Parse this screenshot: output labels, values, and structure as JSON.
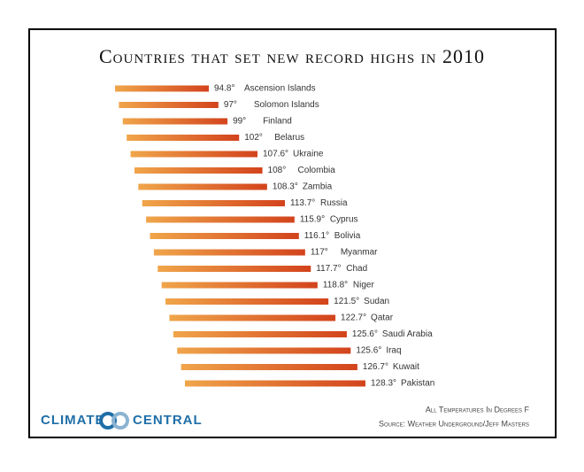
{
  "chart_data": {
    "type": "bar",
    "orientation": "horizontal",
    "title": "Countries that set new record highs in 2010",
    "categories": [
      "Ascension Islands",
      "Solomon Islands",
      "Finland",
      "Belarus",
      "Ukraine",
      "Colombia",
      "Zambia",
      "Russia",
      "Cyprus",
      "Bolivia",
      "Myanmar",
      "Chad",
      "Niger",
      "Sudan",
      "Qatar",
      "Saudi Arabia",
      "Iraq",
      "Kuwait",
      "Pakistan"
    ],
    "values": [
      94.8,
      97,
      99,
      102,
      107.6,
      108,
      108.3,
      113.7,
      115.9,
      116.1,
      117,
      117.7,
      118.8,
      121.5,
      122.7,
      125.6,
      125.6,
      126.7,
      128.3
    ],
    "value_labels": [
      "94.8°",
      "97°",
      "99°",
      "102°",
      "107.6°",
      "108°",
      "108.3°",
      "113.7°",
      "115.9°",
      "116.1°",
      "117°",
      "117.7°",
      "118.8°",
      "121.5°",
      "122.7°",
      "125.6°",
      "125.6°",
      "126.7°",
      "128.3°"
    ],
    "color": "#f0a54a",
    "color_end": "#d3431c",
    "notes": [
      "All Temperatures In Degrees F",
      "Source: Weather Underground/Jeff Masters"
    ]
  },
  "logo": {
    "left": "CLIMATE",
    "right": "CENTRAL"
  }
}
